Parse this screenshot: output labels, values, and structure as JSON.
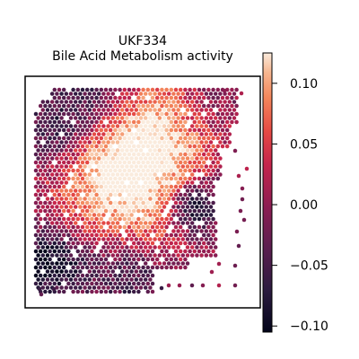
{
  "chart_data": {
    "type": "heatmap",
    "subtype": "spatial-hex-spot-map",
    "title_line1": "UKF334",
    "title_line2": "Bile Acid Metabolism activity",
    "xlabel": "",
    "ylabel": "",
    "colorbar": {
      "colormap": "rocket",
      "vmin": -0.105,
      "vmax": 0.125,
      "ticks": [
        0.1,
        0.05,
        0.0,
        -0.05,
        -0.1
      ],
      "tick_labels": [
        "0.10",
        "0.05",
        "0.00",
        "−0.05",
        "−0.10"
      ]
    },
    "grid": false,
    "legend": "colorbar-right"
  }
}
